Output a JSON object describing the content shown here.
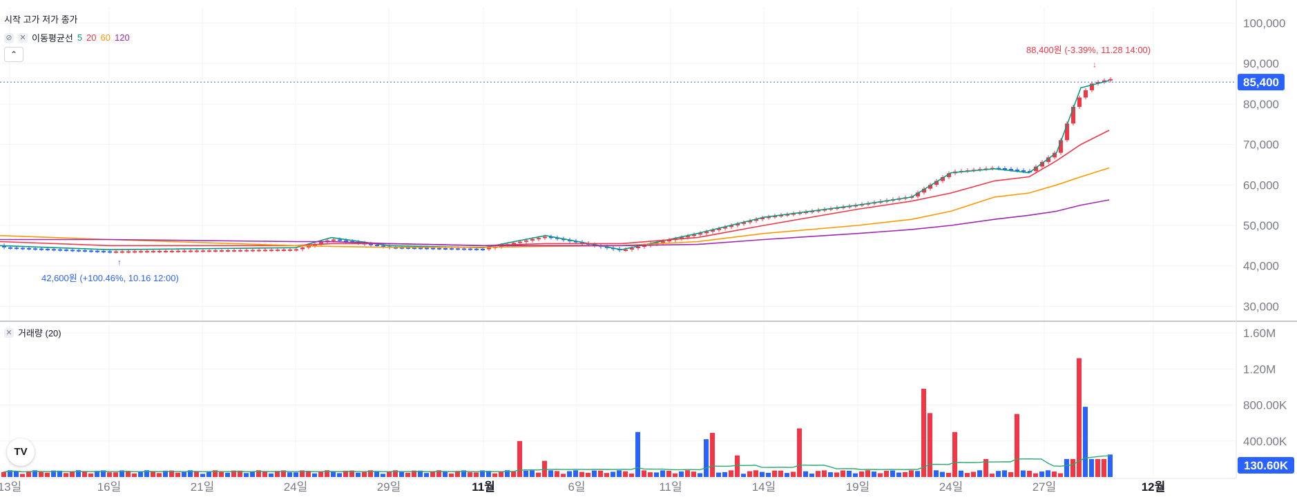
{
  "legend": {
    "ohlc_label": "시작 고가 저가 종가",
    "ma_label": "이동평균선",
    "ma_periods": [
      {
        "label": "5",
        "color": "#089981"
      },
      {
        "label": "20",
        "color": "#f23645"
      },
      {
        "label": "60",
        "color": "#ff9800"
      },
      {
        "label": "120",
        "color": "#9c27b0"
      }
    ],
    "collapse_icon": "chevron-up-icon",
    "visibility_icon": "eye-slash-icon",
    "remove_icon": "close-icon"
  },
  "volume_legend": {
    "label": "거래량 (20)"
  },
  "annotations": {
    "high": "88,400원 (-3.39%, 11.28 14:00)",
    "low": "42,600원 (+100.46%, 10.16 12:00)"
  },
  "price_axis": {
    "ticks": [
      "100,000",
      "90,000",
      "80,000",
      "70,000",
      "60,000",
      "50,000",
      "40,000",
      "30,000"
    ],
    "current_label": "85,400"
  },
  "volume_axis": {
    "ticks": [
      "1.60M",
      "1.20M",
      "800.00K",
      "400.00K"
    ],
    "current_label": "130.60K"
  },
  "time_axis": {
    "ticks": [
      "13일",
      "16일",
      "21일",
      "24일",
      "29일",
      "11월",
      "6일",
      "11일",
      "14일",
      "19일",
      "24일",
      "27일",
      "12월"
    ],
    "bold_ticks": [
      "11월",
      "12월"
    ]
  },
  "colors": {
    "up": "#f23645",
    "down": "#2962ff",
    "grid": "#f0f3fa",
    "axis_text": "#787b86",
    "volume_ma": "#26a96c"
  },
  "chart_data": {
    "type": "line",
    "title": "",
    "ylim": [
      27000,
      104000
    ],
    "volume_ylim": [
      0,
      1700000
    ],
    "grid": true,
    "current_price": 85400,
    "current_volume": 130600,
    "series": [
      {
        "name": "5",
        "x": [
          "10.11",
          "10.16",
          "10.24",
          "10.25",
          "10.29",
          "11.01",
          "11.05",
          "11.08",
          "11.12",
          "11.14",
          "11.19",
          "11.21",
          "11.22",
          "11.25",
          "11.26",
          "11.27",
          "11.28",
          "11.29"
        ],
        "values": [
          45000,
          44000,
          44500,
          47000,
          45000,
          44500,
          47500,
          44000,
          48000,
          52000,
          55000,
          57000,
          63000,
          64000,
          63000,
          68000,
          84000,
          85800
        ]
      },
      {
        "name": "20",
        "x": [
          "10.11",
          "10.16",
          "10.24",
          "10.25",
          "10.29",
          "11.01",
          "11.05",
          "11.08",
          "11.12",
          "11.14",
          "11.19",
          "11.21",
          "11.22",
          "11.25",
          "11.26",
          "11.27",
          "11.28",
          "11.29"
        ],
        "values": [
          46000,
          45000,
          45000,
          45500,
          45500,
          45000,
          45500,
          45500,
          47000,
          50000,
          54000,
          56000,
          58000,
          61000,
          62000,
          66000,
          70000,
          73500
        ]
      },
      {
        "name": "60",
        "x": [
          "10.11",
          "10.16",
          "10.24",
          "10.25",
          "10.29",
          "11.01",
          "11.05",
          "11.08",
          "11.12",
          "11.14",
          "11.19",
          "11.21",
          "11.22",
          "11.25",
          "11.26",
          "11.27",
          "11.28",
          "11.29"
        ],
        "values": [
          47500,
          46500,
          45000,
          44800,
          44600,
          44600,
          44800,
          45000,
          46000,
          48000,
          50000,
          51500,
          53500,
          57000,
          58000,
          60000,
          62000,
          64200
        ]
      },
      {
        "name": "120",
        "x": [
          "10.11",
          "10.16",
          "10.24",
          "10.25",
          "10.29",
          "11.01",
          "11.05",
          "11.08",
          "11.12",
          "11.14",
          "11.19",
          "11.21",
          "11.22",
          "11.25",
          "11.26",
          "11.27",
          "11.28",
          "11.29"
        ],
        "values": [
          46500,
          46500,
          46000,
          46000,
          45500,
          45000,
          45000,
          45000,
          45300,
          46500,
          48000,
          49000,
          50000,
          51500,
          52500,
          53500,
          55000,
          56300
        ]
      }
    ],
    "annotated_high": 88400,
    "annotated_low": 42600
  }
}
